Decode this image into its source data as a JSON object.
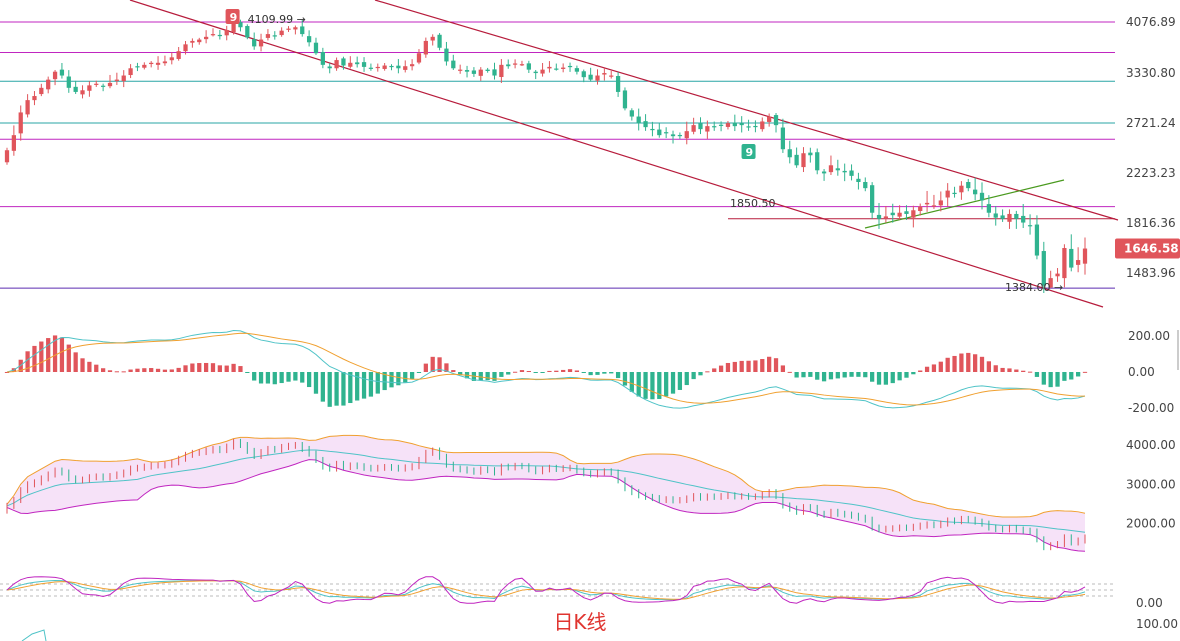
{
  "caption": "日K线",
  "colors": {
    "up": "#e0555b",
    "down": "#2fb38f",
    "accent": "#e0555b"
  },
  "chart_data": [
    {
      "type": "candlestick",
      "panel": "price",
      "y_ticks": [
        "4076.89",
        "3330.80",
        "2721.24",
        "2223.23",
        "1816.36",
        "1483.96"
      ],
      "y_tick_values": [
        4076.89,
        3330.8,
        2721.24,
        2223.23,
        1816.36,
        1483.96
      ],
      "last_price": {
        "value": 1646.58,
        "label": "1646.58"
      },
      "high_marker": {
        "label": "4109.99",
        "value": 4109.99
      },
      "low_marker": {
        "label": "1384.00",
        "value": 1384.0
      },
      "level_marker": {
        "label": "1850.50",
        "value": 1850.5
      },
      "td_badges": [
        {
          "label": "9",
          "color": "#e0555b"
        },
        {
          "label": "9",
          "color": "#2fb38f"
        }
      ],
      "horizontal_levels": [
        4076.89,
        3630,
        3230,
        2721.24,
        2560,
        1950,
        1850.5,
        1383
      ],
      "series_close": [
        2450,
        2600,
        2850,
        3000,
        3050,
        3150,
        3250,
        3350,
        3300,
        3150,
        3100,
        3120,
        3180,
        3200,
        3170,
        3210,
        3250,
        3300,
        3400,
        3420,
        3450,
        3480,
        3480,
        3500,
        3560,
        3650,
        3750,
        3800,
        3820,
        3860,
        3900,
        3870,
        3960,
        4080,
        4000,
        3850,
        3720,
        3820,
        3900,
        3880,
        3950,
        3980,
        4000,
        3900,
        3780,
        3620,
        3450,
        3400,
        3520,
        3440,
        3480,
        3460,
        3420,
        3400,
        3420,
        3440,
        3420,
        3400,
        3430,
        3460,
        3620,
        3800,
        3860,
        3700,
        3500,
        3400,
        3380,
        3350,
        3320,
        3380,
        3360,
        3300,
        3450,
        3430,
        3470,
        3460,
        3380,
        3330,
        3380,
        3420,
        3390,
        3410,
        3420,
        3350,
        3280,
        3250,
        3300,
        3330,
        3300,
        3100,
        2900,
        2800,
        2720,
        2680,
        2650,
        2600,
        2620,
        2590,
        2600,
        2640,
        2700,
        2660,
        2690,
        2680,
        2700,
        2720,
        2690,
        2700,
        2680,
        2690,
        2740,
        2800,
        2700,
        2460,
        2380,
        2300,
        2420,
        2400,
        2250,
        2220,
        2300,
        2250,
        2230,
        2200,
        2150,
        2100,
        1900,
        1850,
        1870,
        1880,
        1900,
        1890,
        1920,
        1950,
        1980,
        1960,
        2000,
        2080,
        2060,
        2120,
        2100,
        2050,
        2000,
        1900,
        1860,
        1850,
        1890,
        1850,
        1820,
        1800,
        1600,
        1400,
        1450,
        1480,
        1650,
        1520,
        1570,
        1646.58
      ]
    },
    {
      "type": "macd",
      "panel": "macd",
      "y_ticks": [
        "200.00",
        "0.00",
        "-200.00"
      ],
      "y_tick_values": [
        200,
        0,
        -200
      ]
    },
    {
      "type": "bollinger",
      "panel": "boll",
      "y_ticks": [
        "4000.00",
        "3000.00",
        "2000.00"
      ],
      "y_tick_values": [
        4000,
        3000,
        2000
      ]
    },
    {
      "type": "oscillator",
      "panel": "kdj",
      "y_ticks": [
        "0.00",
        "100.00"
      ],
      "y_tick_values": [
        0,
        100
      ]
    }
  ]
}
